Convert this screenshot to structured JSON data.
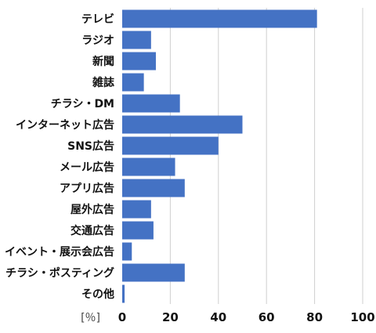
{
  "chart_data": {
    "type": "bar",
    "orientation": "horizontal",
    "categories": [
      "テレビ",
      "ラジオ",
      "新聞",
      "雑誌",
      "チラシ・DM",
      "インターネット広告",
      "SNS広告",
      "メール広告",
      "アプリ広告",
      "屋外広告",
      "交通広告",
      "イベント・展示会広告",
      "チラシ・ポスティング",
      "その他"
    ],
    "values": [
      81,
      12,
      14,
      9,
      24,
      50,
      40,
      22,
      26,
      12,
      13,
      4,
      26,
      1
    ],
    "xlim": [
      0,
      100
    ],
    "xticks": [
      0,
      20,
      40,
      60,
      80,
      100
    ],
    "unit_label": "[％]",
    "grid": true,
    "bar_color": "#4472c4"
  }
}
